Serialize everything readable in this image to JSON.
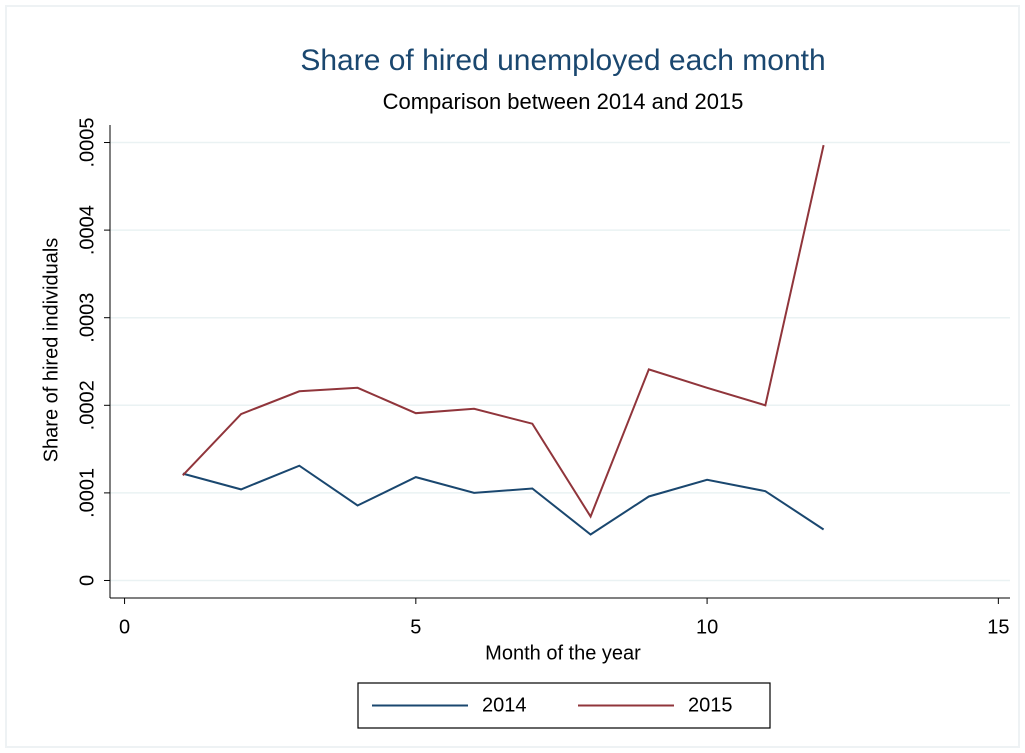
{
  "chart_data": {
    "type": "line",
    "title": "Share of hired unemployed each month",
    "subtitle": "Comparison between 2014 and 2015",
    "x_label": "Month of the year",
    "y_label": "Share of hired individuals",
    "x": [
      1,
      2,
      3,
      4,
      5,
      6,
      7,
      8,
      9,
      10,
      11,
      12
    ],
    "series": [
      {
        "name": "2014",
        "color": "#1a476f",
        "values": [
          0.000122,
          0.000104,
          0.000131,
          8.56e-05,
          0.000118,
          0.0001,
          0.000105,
          5.25e-05,
          9.59e-05,
          0.000115,
          0.000102,
          5.82e-05
        ]
      },
      {
        "name": "2015",
        "color": "#90353b",
        "values": [
          0.00012,
          0.00019,
          0.000216,
          0.00022,
          0.000191,
          0.000196,
          0.000179,
          7.3e-05,
          0.000241,
          0.00022,
          0.0002,
          0.000497
        ]
      }
    ],
    "xlim": [
      -0.25,
      15.2
    ],
    "xticks": [
      0,
      5,
      10,
      15
    ],
    "ylim": [
      -2e-05,
      0.00052
    ],
    "yticks": [
      0,
      {
        "value": 0.0001,
        "label": ".0001"
      },
      {
        "value": 0.0002,
        "label": ".0002"
      },
      {
        "value": 0.0003,
        "label": ".0003"
      },
      {
        "value": 0.0004,
        "label": ".0004"
      },
      {
        "value": 0.0005,
        "label": ".0005"
      }
    ],
    "grid": true,
    "legend": "bottom"
  }
}
